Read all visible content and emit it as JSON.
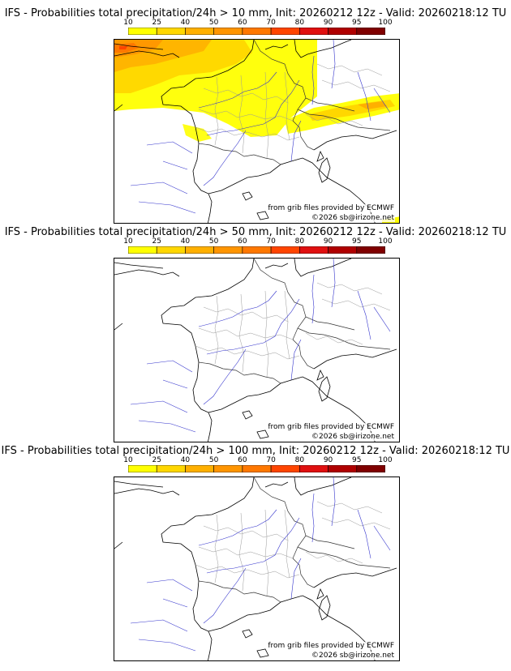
{
  "colorbar": {
    "ticks": [
      "10",
      "25",
      "40",
      "50",
      "60",
      "70",
      "80",
      "90",
      "95",
      "100"
    ],
    "colors": [
      "#ffff00",
      "#ffd700",
      "#ffb000",
      "#ff9500",
      "#ff7800",
      "#ff4500",
      "#e01010",
      "#b00000",
      "#800000",
      "#500000"
    ]
  },
  "panels": [
    {
      "title": "IFS - Probabilities total precipitation/24h > 10 mm, Init: 20260212 12z - Valid: 20260218:12 TU",
      "source_credit": "from grib files provided by ECMWF",
      "copyright": "©2026 sb@irizone.net"
    },
    {
      "title": "IFS - Probabilities total precipitation/24h > 50 mm, Init: 20260212 12z - Valid: 20260218:12 TU",
      "source_credit": "from grib files provided by ECMWF",
      "copyright": "©2026 sb@irizone.net"
    },
    {
      "title": "IFS - Probabilities total precipitation/24h > 100 mm, Init: 20260212 12z - Valid: 20260218:12 TU",
      "source_credit": "from grib files provided by ECMWF",
      "copyright": "©2026 sb@irizone.net"
    }
  ],
  "map_layers": {
    "coastline_color": "#000000",
    "river_color": "#3333cc",
    "border_color": "#999999"
  }
}
